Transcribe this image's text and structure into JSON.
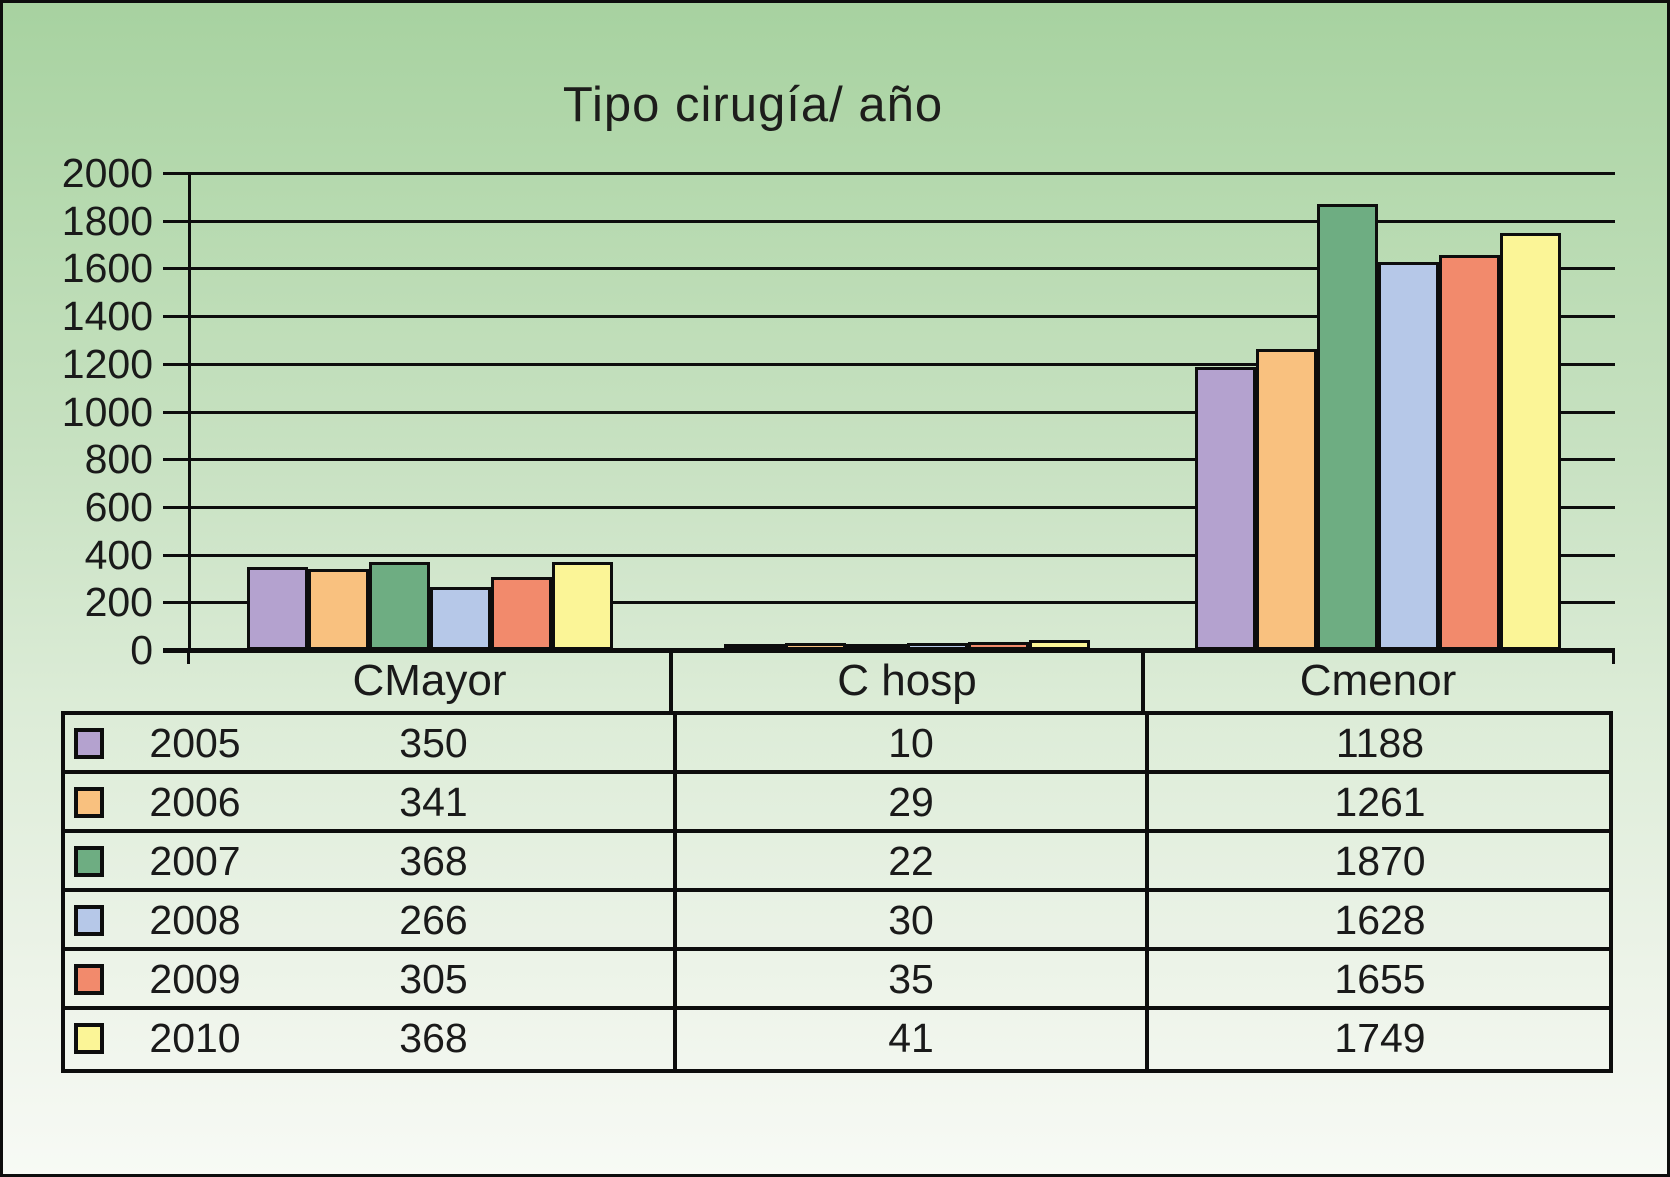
{
  "title": "Tipo cirugía/ año",
  "chart_data": {
    "type": "bar",
    "title": "Tipo cirugía/ año",
    "categories": [
      "CMayor",
      "C hosp",
      "Cmenor"
    ],
    "series": [
      {
        "name": "2005",
        "color": "#b4a2cf",
        "values": [
          350,
          10,
          1188
        ]
      },
      {
        "name": "2006",
        "color": "#f9c17f",
        "values": [
          341,
          29,
          1261
        ]
      },
      {
        "name": "2007",
        "color": "#6ead82",
        "values": [
          368,
          22,
          1870
        ]
      },
      {
        "name": "2008",
        "color": "#b6c8e8",
        "values": [
          266,
          30,
          1628
        ]
      },
      {
        "name": "2009",
        "color": "#f28a6c",
        "values": [
          305,
          35,
          1655
        ]
      },
      {
        "name": "2010",
        "color": "#fbf597",
        "values": [
          368,
          41,
          1749
        ]
      }
    ],
    "ylim": [
      0,
      2000
    ],
    "ytick_step": 200,
    "yticks": [
      0,
      200,
      400,
      600,
      800,
      1000,
      1200,
      1400,
      1600,
      1800,
      2000
    ],
    "grid": true,
    "legend_position": "table-below-with-swatches"
  },
  "table": {
    "column_headers": [
      "CMayor",
      "C hosp",
      "Cmenor"
    ],
    "rows": [
      {
        "year": "2005",
        "cmayor": "350",
        "chosp": "10",
        "cmenor": "1188"
      },
      {
        "year": "2006",
        "cmayor": "341",
        "chosp": "29",
        "cmenor": "1261"
      },
      {
        "year": "2007",
        "cmayor": "368",
        "chosp": "22",
        "cmenor": "1870"
      },
      {
        "year": "2008",
        "cmayor": "266",
        "chosp": "30",
        "cmenor": "1628"
      },
      {
        "year": "2009",
        "cmayor": "305",
        "chosp": "35",
        "cmenor": "1655"
      },
      {
        "year": "2010",
        "cmayor": "368",
        "chosp": "41",
        "cmenor": "1749"
      }
    ]
  },
  "colors": {
    "line": "#0d0d0d",
    "background_top": "#a7d2a0",
    "background_bottom": "#f7faf5"
  }
}
